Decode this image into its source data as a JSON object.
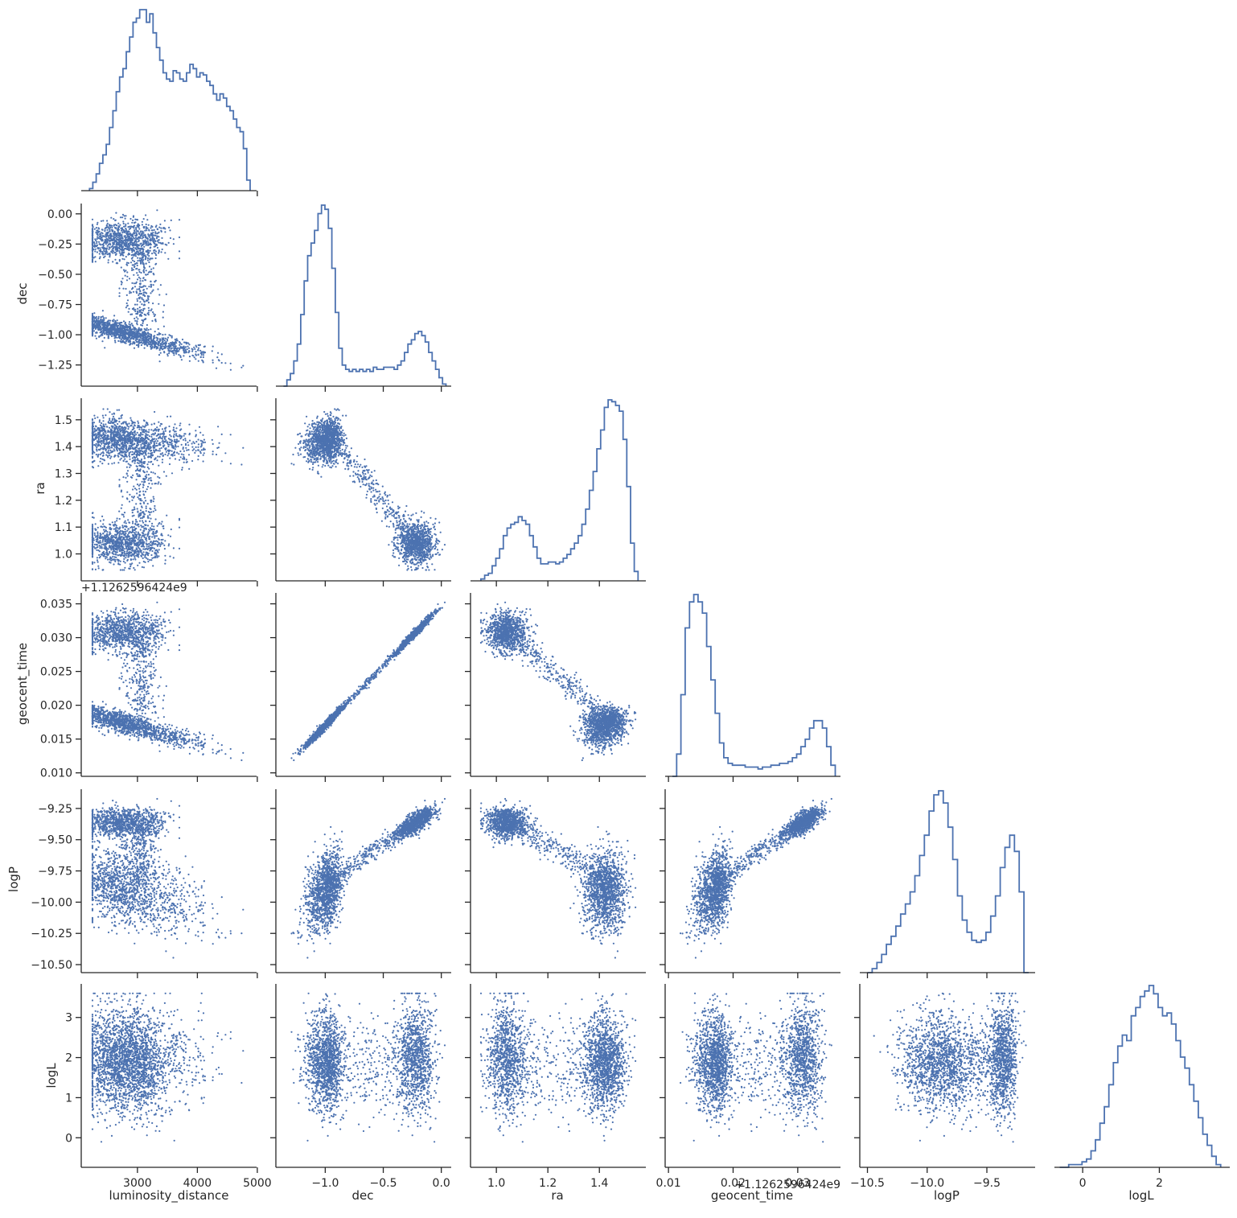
{
  "chart_data": {
    "type": "scatter",
    "title": "",
    "layout": "corner pair plot (lower triangle scatter, diagonal step histograms)",
    "grid": false,
    "legend": "none",
    "colors": {
      "marks": "#4c72b0",
      "axes": "#262626"
    },
    "variables": [
      {
        "name": "luminosity_distance",
        "range": [
          2150,
          4900
        ],
        "ticks": [
          3000,
          4000,
          5000
        ],
        "tick_labels": [
          "3000",
          "4000",
          "5000"
        ],
        "offset_label": ""
      },
      {
        "name": "dec",
        "range": [
          -1.38,
          0.04
        ],
        "ticks": [
          -1.25,
          -1.0,
          -0.75,
          -0.5,
          -0.25,
          0.0
        ],
        "tick_labels": [
          "−1.25",
          "−1.00",
          "−0.75",
          "−0.50",
          "−0.25",
          "0.00"
        ],
        "x_ticks": [
          -1.0,
          -0.5,
          0.0
        ],
        "x_tick_labels": [
          "−1.0",
          "−0.5",
          "0.0"
        ],
        "offset_label": ""
      },
      {
        "name": "ra",
        "range": [
          0.92,
          1.56
        ],
        "ticks": [
          1.0,
          1.1,
          1.2,
          1.3,
          1.4,
          1.5
        ],
        "tick_labels": [
          "1.0",
          "1.1",
          "1.2",
          "1.3",
          "1.4",
          "1.5"
        ],
        "x_ticks": [
          1.0,
          1.2,
          1.4
        ],
        "x_tick_labels": [
          "1.0",
          "1.2",
          "1.4"
        ],
        "offset_label": ""
      },
      {
        "name": "geocent_time",
        "range": [
          0.0103,
          0.0358
        ],
        "ticks": [
          0.01,
          0.015,
          0.02,
          0.025,
          0.03,
          0.035
        ],
        "tick_labels": [
          "0.010",
          "0.015",
          "0.020",
          "0.025",
          "0.030",
          "0.035"
        ],
        "x_ticks": [
          0.01,
          0.02,
          0.03
        ],
        "x_tick_labels": [
          "0.01",
          "0.02",
          "0.03"
        ],
        "offset_label": "+1.1262596424e9"
      },
      {
        "name": "logP",
        "range": [
          -10.52,
          -9.14
        ],
        "ticks": [
          -10.5,
          -10.25,
          -10.0,
          -9.75,
          -9.5,
          -9.25
        ],
        "tick_labels": [
          "−10.50",
          "−10.25",
          "−10.00",
          "−9.75",
          "−9.50",
          "−9.25"
        ],
        "x_ticks": [
          -10.5,
          -10.0,
          -9.5
        ],
        "x_tick_labels": [
          "−10.5",
          "−10.0",
          "−9.5"
        ],
        "offset_label": ""
      },
      {
        "name": "logL",
        "range": [
          -0.6,
          3.7
        ],
        "ticks": [
          0,
          1,
          2,
          3
        ],
        "tick_labels": [
          "0",
          "1",
          "2",
          "3"
        ],
        "x_ticks": [
          0,
          2
        ],
        "x_tick_labels": [
          "0",
          "2"
        ],
        "offset_label": ""
      }
    ],
    "histograms": [
      {
        "variable": "luminosity_distance",
        "bin_edges_range": [
          2200,
          4880
        ],
        "counts": [
          1,
          4,
          8,
          13,
          17,
          22,
          30,
          38,
          47,
          54,
          58,
          66,
          73,
          80,
          82,
          86,
          86,
          80,
          84,
          75,
          68,
          62,
          56,
          53,
          52,
          57,
          56,
          53,
          52,
          56,
          60,
          58,
          54,
          56,
          55,
          52,
          50,
          46,
          43,
          46,
          44,
          40,
          38,
          34,
          30,
          28,
          20,
          5
        ]
      },
      {
        "variable": "dec",
        "bin_edges_range": [
          -1.36,
          0.04
        ],
        "counts": [
          0,
          3,
          6,
          12,
          20,
          34,
          50,
          62,
          68,
          74,
          82,
          86,
          84,
          75,
          56,
          35,
          18,
          10,
          8,
          7,
          8,
          7,
          8,
          7,
          8,
          7,
          9,
          8,
          8,
          9,
          9,
          9,
          8,
          10,
          12,
          16,
          20,
          22,
          25,
          26,
          24,
          21,
          16,
          12,
          8,
          4,
          1
        ]
      },
      {
        "variable": "ra",
        "bin_edges_range": [
          0.94,
          1.55
        ],
        "counts": [
          1,
          3,
          4,
          8,
          12,
          17,
          24,
          28,
          30,
          31,
          34,
          32,
          30,
          24,
          18,
          12,
          9,
          9,
          10,
          10,
          9,
          10,
          12,
          14,
          17,
          20,
          24,
          30,
          38,
          48,
          58,
          70,
          80,
          92,
          96,
          95,
          93,
          90,
          75,
          50,
          20,
          5
        ]
      },
      {
        "variable": "geocent_time",
        "bin_edges_range": [
          0.0106,
          0.0358
        ],
        "counts": [
          0,
          12,
          44,
          80,
          94,
          98,
          94,
          88,
          70,
          52,
          34,
          18,
          10,
          7,
          6,
          6,
          6,
          5,
          5,
          5,
          4,
          5,
          5,
          6,
          6,
          7,
          7,
          8,
          10,
          12,
          16,
          20,
          26,
          30,
          30,
          26,
          16,
          6
        ]
      },
      {
        "variable": "logP",
        "bin_edges_range": [
          -10.5,
          -9.15
        ],
        "counts": [
          0,
          2,
          5,
          9,
          14,
          18,
          23,
          29,
          34,
          40,
          48,
          58,
          68,
          80,
          88,
          90,
          84,
          72,
          56,
          38,
          26,
          20,
          16,
          15,
          16,
          20,
          28,
          38,
          52,
          62,
          68,
          60,
          40,
          0
        ]
      },
      {
        "variable": "logL",
        "bin_edges_range": [
          -0.6,
          3.6
        ],
        "counts": [
          0,
          0,
          1,
          1,
          1,
          2,
          3,
          6,
          10,
          16,
          22,
          30,
          38,
          44,
          48,
          46,
          55,
          58,
          62,
          64,
          66,
          63,
          58,
          55,
          56,
          52,
          46,
          40,
          36,
          30,
          24,
          18,
          12,
          8,
          4,
          1
        ]
      }
    ]
  },
  "axis_labels": {
    "bottom": [
      "luminosity_distance",
      "dec",
      "ra",
      "geocent_time",
      "logP",
      "logL"
    ],
    "left": [
      "",
      "dec",
      "ra",
      "geocent_time",
      "logP",
      "logL"
    ]
  },
  "offset_labels": {
    "geocent_time_y": "+1.1262596424e9",
    "geocent_time_x": "+1.1262596424e9"
  }
}
